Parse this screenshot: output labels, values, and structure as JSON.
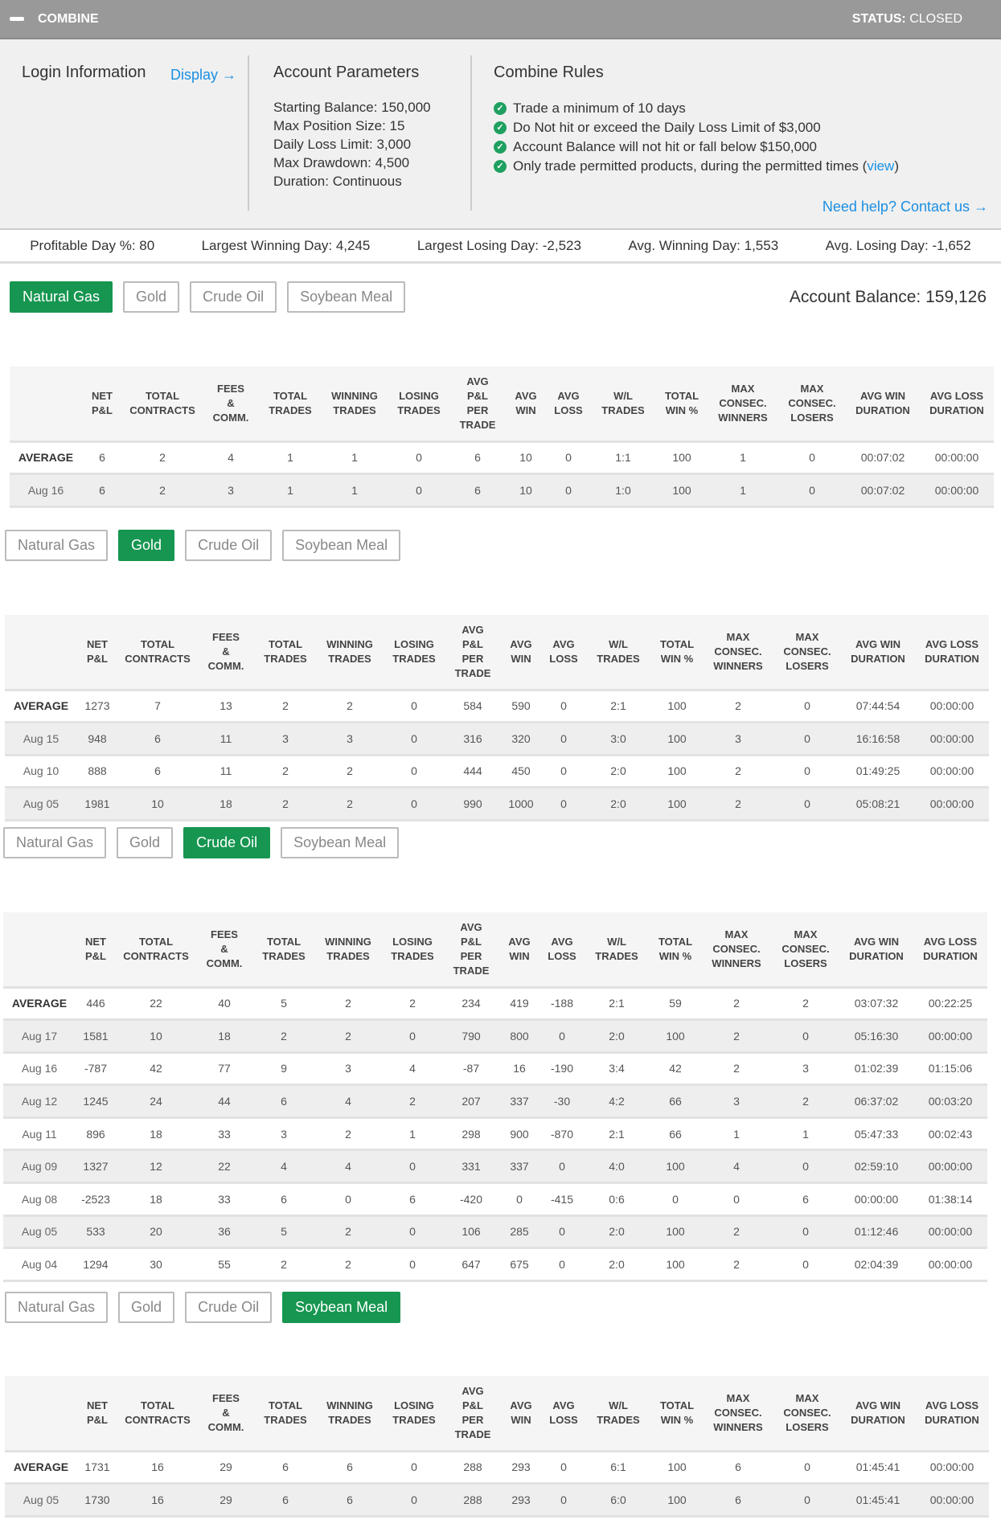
{
  "header": {
    "title": "COMBINE",
    "status_label": "STATUS:",
    "status_value": "CLOSED"
  },
  "login": {
    "title": "Login Information",
    "display_link": "Display →"
  },
  "params": {
    "title": "Account Parameters",
    "items": [
      "Starting Balance: 150,000",
      "Max Position Size: 15",
      "Daily Loss Limit: 3,000",
      "Max Drawdown: 4,500",
      "Duration: Continuous"
    ]
  },
  "rules": {
    "title": "Combine Rules",
    "items": [
      "Trade a minimum of 10 days",
      "Do Not hit or exceed the Daily Loss Limit of $3,000",
      "Account Balance will not hit or fall below $150,000",
      "Only trade permitted products, during the permitted times ("
    ],
    "view_link": "view",
    "close_paren": ")",
    "help_link": "Need help? Contact us →"
  },
  "stats": [
    "Profitable Day %: 80",
    "Largest Winning Day: 4,245",
    "Largest Losing Day: -2,523",
    "Avg. Winning Day: 1,553",
    "Avg. Losing Day: -1,652"
  ],
  "products": [
    "Natural Gas",
    "Gold",
    "Crude Oil",
    "Soybean Meal"
  ],
  "account_balance": "Account Balance: 159,126",
  "colors": {
    "accent": "#169650",
    "link": "#1a8fe3",
    "header_bg": "#999999"
  },
  "columns": [
    [
      ""
    ],
    [
      "NET",
      "P&L"
    ],
    [
      "TOTAL",
      "CONTRACTS"
    ],
    [
      "FEES",
      "&",
      "COMM."
    ],
    [
      "TOTAL",
      "TRADES"
    ],
    [
      "WINNING",
      "TRADES"
    ],
    [
      "LOSING",
      "TRADES"
    ],
    [
      "AVG",
      "P&L",
      "PER",
      "TRADE"
    ],
    [
      "AVG",
      "WIN"
    ],
    [
      "AVG",
      "LOSS"
    ],
    [
      "W/L",
      "TRADES"
    ],
    [
      "TOTAL",
      "WIN %"
    ],
    [
      "MAX",
      "CONSEC.",
      "WINNERS"
    ],
    [
      "MAX",
      "CONSEC.",
      "LOSERS"
    ],
    [
      "AVG WIN",
      "DURATION"
    ],
    [
      "AVG LOSS",
      "DURATION"
    ]
  ],
  "sections": [
    {
      "active": 0,
      "rows": [
        [
          "AVERAGE",
          "6",
          "2",
          "4",
          "1",
          "1",
          "0",
          "6",
          "10",
          "0",
          "1:1",
          "100",
          "1",
          "0",
          "00:07:02",
          "00:00:00"
        ],
        [
          "Aug 16",
          "6",
          "2",
          "3",
          "1",
          "1",
          "0",
          "6",
          "10",
          "0",
          "1:0",
          "100",
          "1",
          "0",
          "00:07:02",
          "00:00:00"
        ]
      ]
    },
    {
      "active": 1,
      "rows": [
        [
          "AVERAGE",
          "1273",
          "7",
          "13",
          "2",
          "2",
          "0",
          "584",
          "590",
          "0",
          "2:1",
          "100",
          "2",
          "0",
          "07:44:54",
          "00:00:00"
        ],
        [
          "Aug 15",
          "948",
          "6",
          "11",
          "3",
          "3",
          "0",
          "316",
          "320",
          "0",
          "3:0",
          "100",
          "3",
          "0",
          "16:16:58",
          "00:00:00"
        ],
        [
          "Aug 10",
          "888",
          "6",
          "11",
          "2",
          "2",
          "0",
          "444",
          "450",
          "0",
          "2:0",
          "100",
          "2",
          "0",
          "01:49:25",
          "00:00:00"
        ],
        [
          "Aug 05",
          "1981",
          "10",
          "18",
          "2",
          "2",
          "0",
          "990",
          "1000",
          "0",
          "2:0",
          "100",
          "2",
          "0",
          "05:08:21",
          "00:00:00"
        ]
      ]
    },
    {
      "active": 2,
      "rows": [
        [
          "AVERAGE",
          "446",
          "22",
          "40",
          "5",
          "2",
          "2",
          "234",
          "419",
          "-188",
          "2:1",
          "59",
          "2",
          "2",
          "03:07:32",
          "00:22:25"
        ],
        [
          "Aug 17",
          "1581",
          "10",
          "18",
          "2",
          "2",
          "0",
          "790",
          "800",
          "0",
          "2:0",
          "100",
          "2",
          "0",
          "05:16:30",
          "00:00:00"
        ],
        [
          "Aug 16",
          "-787",
          "42",
          "77",
          "9",
          "3",
          "4",
          "-87",
          "16",
          "-190",
          "3:4",
          "42",
          "2",
          "3",
          "01:02:39",
          "01:15:06"
        ],
        [
          "Aug 12",
          "1245",
          "24",
          "44",
          "6",
          "4",
          "2",
          "207",
          "337",
          "-30",
          "4:2",
          "66",
          "3",
          "2",
          "06:37:02",
          "00:03:20"
        ],
        [
          "Aug 11",
          "896",
          "18",
          "33",
          "3",
          "2",
          "1",
          "298",
          "900",
          "-870",
          "2:1",
          "66",
          "1",
          "1",
          "05:47:33",
          "00:02:43"
        ],
        [
          "Aug 09",
          "1327",
          "12",
          "22",
          "4",
          "4",
          "0",
          "331",
          "337",
          "0",
          "4:0",
          "100",
          "4",
          "0",
          "02:59:10",
          "00:00:00"
        ],
        [
          "Aug 08",
          "-2523",
          "18",
          "33",
          "6",
          "0",
          "6",
          "-420",
          "0",
          "-415",
          "0:6",
          "0",
          "0",
          "6",
          "00:00:00",
          "01:38:14"
        ],
        [
          "Aug 05",
          "533",
          "20",
          "36",
          "5",
          "2",
          "0",
          "106",
          "285",
          "0",
          "2:0",
          "100",
          "2",
          "0",
          "01:12:46",
          "00:00:00"
        ],
        [
          "Aug 04",
          "1294",
          "30",
          "55",
          "2",
          "2",
          "0",
          "647",
          "675",
          "0",
          "2:0",
          "100",
          "2",
          "0",
          "02:04:39",
          "00:00:00"
        ]
      ]
    },
    {
      "active": 3,
      "rows": [
        [
          "AVERAGE",
          "1731",
          "16",
          "29",
          "6",
          "6",
          "0",
          "288",
          "293",
          "0",
          "6:1",
          "100",
          "6",
          "0",
          "01:45:41",
          "00:00:00"
        ],
        [
          "Aug 05",
          "1730",
          "16",
          "29",
          "6",
          "6",
          "0",
          "288",
          "293",
          "0",
          "6:0",
          "100",
          "6",
          "0",
          "01:45:41",
          "00:00:00"
        ]
      ]
    }
  ]
}
